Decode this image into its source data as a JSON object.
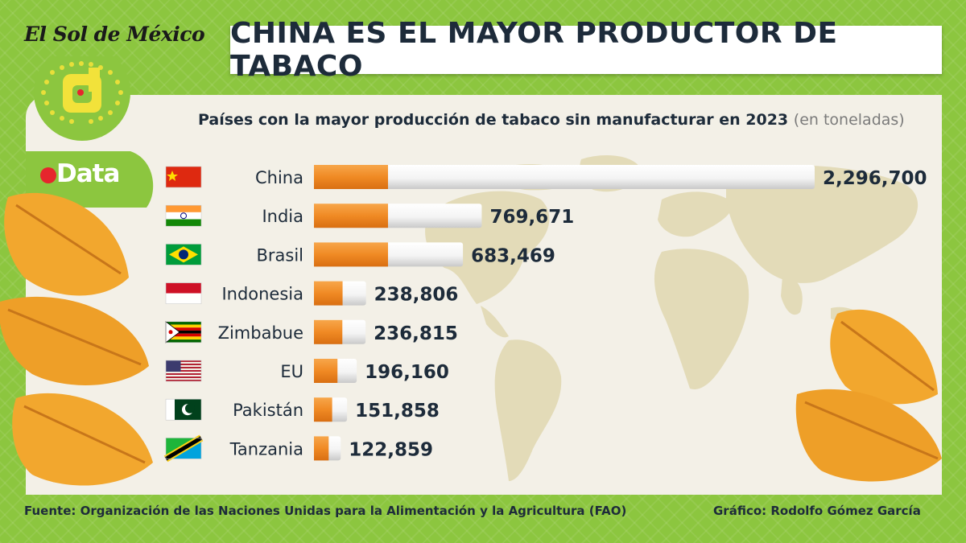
{
  "brand": "El Sol de México",
  "logo_text": "Data",
  "title": "CHINA ES EL MAYOR PRODUCTOR DE TABACO",
  "subtitle": "Países con la mayor producción de tabaco sin manufacturar en 2023",
  "subtitle_unit": "(en toneladas)",
  "source": "Fuente: Organización de las Naciones Unidas para la Alimentación y la Agricultura (FAO)",
  "credit": "Gráfico: Rodolfo Gómez García",
  "colors": {
    "background": "#8cc63f",
    "panel": "#f3f0e7",
    "bar_orange": "#f08a24",
    "bar_white": "#ffffff",
    "text": "#1d2b3a",
    "map": "#e3dbb8",
    "leaf": "#f2a72e"
  },
  "chart_data": {
    "type": "bar",
    "orientation": "horizontal",
    "categories": [
      "China",
      "India",
      "Brasil",
      "Indonesia",
      "Zimbabue",
      "EU",
      "Pakistán",
      "Tanzania"
    ],
    "values": [
      2296700,
      769671,
      683469,
      238806,
      236815,
      196160,
      151858,
      122859
    ],
    "value_labels": [
      "2,296,700",
      "769,671",
      "683,469",
      "238,806",
      "236,815",
      "196,160",
      "151,858",
      "122,859"
    ],
    "flags": [
      "china-flag-icon",
      "india-flag-icon",
      "brazil-flag-icon",
      "indonesia-flag-icon",
      "zimbabwe-flag-icon",
      "usa-flag-icon",
      "pakistan-flag-icon",
      "tanzania-flag-icon"
    ],
    "xlim": [
      0,
      2296700
    ],
    "grid": false,
    "legend": "none"
  }
}
